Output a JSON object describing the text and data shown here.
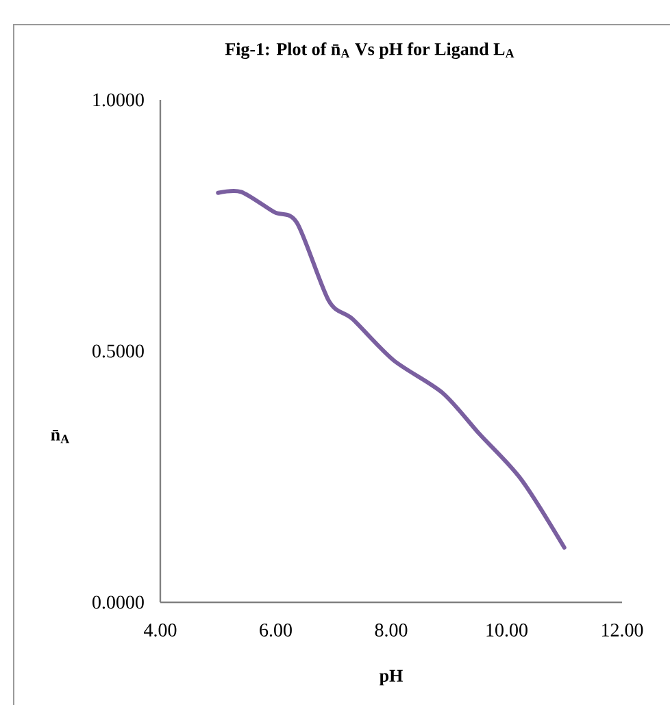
{
  "chart_data": {
    "type": "line",
    "title": "Fig-1: Plot of  n̄$_{A}$ Vs pH for Ligand L$_{A}$",
    "xlabel": "pH",
    "ylabel": "n̄$_{A}$",
    "x": [
      5.0,
      5.4,
      5.97,
      6.37,
      6.92,
      7.33,
      8.04,
      8.89,
      9.53,
      10.25,
      11.0
    ],
    "series": [
      {
        "color": "#7a5fa0",
        "values": [
          0.815,
          0.817,
          0.777,
          0.755,
          0.6,
          0.564,
          0.482,
          0.417,
          0.335,
          0.245,
          0.109
        ]
      }
    ],
    "xlim": [
      4,
      12
    ],
    "ylim": [
      0,
      1
    ],
    "xticks": [
      {
        "value": 4,
        "label": "4.00"
      },
      {
        "value": 6,
        "label": "6.00"
      },
      {
        "value": 8,
        "label": "8.00"
      },
      {
        "value": 10,
        "label": "10.00"
      },
      {
        "value": 12,
        "label": "12.00"
      }
    ],
    "yticks": [
      {
        "value": 0,
        "label": "0.0000"
      },
      {
        "value": 0.5,
        "label": "0.5000"
      },
      {
        "value": 1,
        "label": "1.0000"
      }
    ],
    "grid": false,
    "legend": false,
    "marker": "none",
    "line_style": "solid"
  }
}
